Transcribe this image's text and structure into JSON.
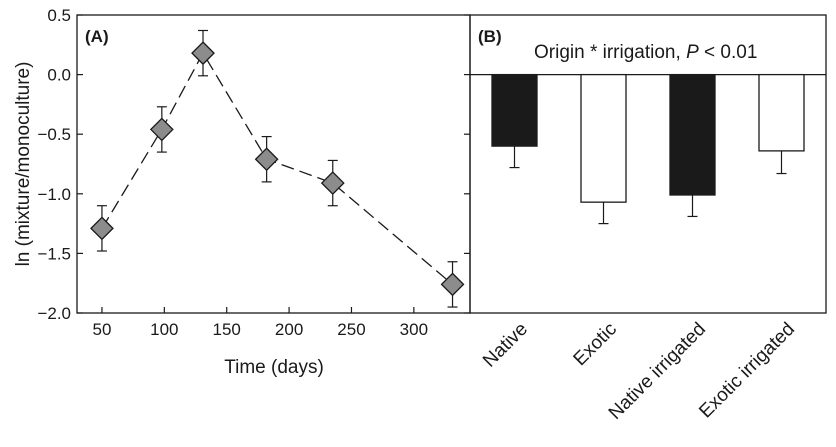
{
  "chart_data": [
    {
      "type": "line",
      "panel_label": "(A)",
      "xlabel": "Time (days)",
      "ylabel": "ln (mixture/monoculture)",
      "xlim": [
        30,
        345
      ],
      "ylim": [
        -2.0,
        0.5
      ],
      "x_ticks": [
        50,
        100,
        150,
        200,
        250,
        300
      ],
      "x_tick_labels": [
        "50",
        "100",
        "150",
        "200",
        "250",
        "300"
      ],
      "y_ticks": [
        -2.0,
        -1.5,
        -1.0,
        -0.5,
        0.0,
        0.5
      ],
      "y_tick_labels": [
        "−2.0",
        "−1.5",
        "−1.0",
        "−0.5",
        "0.0",
        "0.5"
      ],
      "line_style": "dashed",
      "marker": "diamond",
      "marker_color": "#8c8c8c",
      "grid": false,
      "series": [
        {
          "x": [
            50,
            98,
            131,
            182,
            235,
            331
          ],
          "y": [
            -1.29,
            -0.46,
            0.18,
            -0.71,
            -0.91,
            -1.76
          ],
          "error": [
            0.19,
            0.19,
            0.19,
            0.19,
            0.19,
            0.19
          ]
        }
      ]
    },
    {
      "type": "bar",
      "panel_label": "(B)",
      "annotation": {
        "prefix": "Origin * irrigation, ",
        "italic": "P",
        "suffix": " < 0.01"
      },
      "categories": [
        "Native",
        "Exotic",
        "Native irrigated",
        "Exotic irrigated"
      ],
      "values": [
        -0.6,
        -1.07,
        -1.01,
        -0.64
      ],
      "error": [
        0.18,
        0.18,
        0.18,
        0.19
      ],
      "bar_colors": [
        "#1a1a1a",
        "#ffffff",
        "#1a1a1a",
        "#ffffff"
      ],
      "ylim": [
        -2.0,
        0.5
      ],
      "baseline": 0.0,
      "grid": false
    }
  ]
}
